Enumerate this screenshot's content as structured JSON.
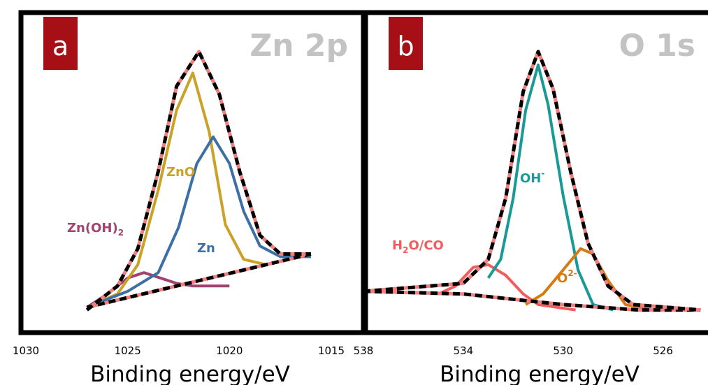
{
  "chart_data": [
    {
      "type": "line",
      "panel_label": "a",
      "title": "Zn 2p",
      "xlabel": "Binding energy/eV",
      "xlim": [
        1030,
        1015
      ],
      "x_reversed": true,
      "xticks": [
        1030,
        1025,
        1020,
        1015
      ],
      "colors": {
        "badge": "#a50f15",
        "title": "#c3c3c3"
      },
      "series": [
        {
          "label_text": "Zn(OH)",
          "label_sub": "2",
          "color": "#a2426f",
          "points": [
            [
              1027.0,
              0.04
            ],
            [
              1026.0,
              0.09
            ],
            [
              1025.0,
              0.15
            ],
            [
              1024.2,
              0.17
            ],
            [
              1023.4,
              0.15
            ],
            [
              1022.6,
              0.13
            ],
            [
              1021.8,
              0.12
            ],
            [
              1020.0,
              0.12
            ]
          ]
        },
        {
          "label_text": "ZnO",
          "label_sub": "",
          "color": "#c9a227",
          "points": [
            [
              1027.0,
              0.04
            ],
            [
              1025.5,
              0.09
            ],
            [
              1024.5,
              0.2
            ],
            [
              1023.5,
              0.48
            ],
            [
              1022.6,
              0.78
            ],
            [
              1021.8,
              0.92
            ],
            [
              1021.0,
              0.7
            ],
            [
              1020.2,
              0.35
            ],
            [
              1019.3,
              0.22
            ],
            [
              1018.2,
              0.2
            ]
          ]
        },
        {
          "label_text": "Zn",
          "label_sub": "",
          "color": "#3d6fa5",
          "points": [
            [
              1027.0,
              0.04
            ],
            [
              1025.0,
              0.1
            ],
            [
              1023.5,
              0.17
            ],
            [
              1022.5,
              0.34
            ],
            [
              1021.6,
              0.58
            ],
            [
              1020.8,
              0.68
            ],
            [
              1020.0,
              0.58
            ],
            [
              1019.3,
              0.4
            ],
            [
              1018.5,
              0.27
            ],
            [
              1017.5,
              0.23
            ],
            [
              1016.0,
              0.23
            ]
          ]
        },
        {
          "label_text": "Background",
          "label_sub": "",
          "color": "#000000",
          "dashed": true,
          "hidden_label": true,
          "points": [
            [
              1027.0,
              0.04
            ],
            [
              1016.0,
              0.24
            ]
          ]
        },
        {
          "label_text": "Envelope",
          "label_sub": "",
          "color": "#000000",
          "dashed": true,
          "hidden_label": true,
          "points": [
            [
              1027.0,
              0.03
            ],
            [
              1025.5,
              0.12
            ],
            [
              1024.5,
              0.26
            ],
            [
              1023.5,
              0.55
            ],
            [
              1022.6,
              0.87
            ],
            [
              1021.5,
              1.0
            ],
            [
              1020.5,
              0.84
            ],
            [
              1019.5,
              0.55
            ],
            [
              1018.5,
              0.31
            ],
            [
              1017.5,
              0.24
            ],
            [
              1016.0,
              0.24
            ]
          ]
        }
      ]
    },
    {
      "type": "line",
      "panel_label": "b",
      "title": "O 1s",
      "xlabel": "Binding energy/eV",
      "xlim": [
        538,
        524
      ],
      "x_reversed": true,
      "xticks": [
        538,
        534,
        530,
        526
      ],
      "colors": {
        "badge": "#a50f15",
        "title": "#c3c3c3"
      },
      "series": [
        {
          "label_text": "H",
          "label_sub": "2",
          "label_text2": "O/CO",
          "color": "#f25c5c",
          "points": [
            [
              535.0,
              0.09
            ],
            [
              534.3,
              0.12
            ],
            [
              533.6,
              0.19
            ],
            [
              533.0,
              0.2
            ],
            [
              532.3,
              0.16
            ],
            [
              531.6,
              0.09
            ],
            [
              531.0,
              0.05
            ],
            [
              529.5,
              0.03
            ]
          ]
        },
        {
          "label_text": "OH",
          "label_sup": "-",
          "color": "#1a9a96",
          "points": [
            [
              533.0,
              0.15
            ],
            [
              532.5,
              0.22
            ],
            [
              532.0,
              0.45
            ],
            [
              531.5,
              0.78
            ],
            [
              531.0,
              0.95
            ],
            [
              530.6,
              0.8
            ],
            [
              530.0,
              0.46
            ],
            [
              529.4,
              0.18
            ],
            [
              528.8,
              0.05
            ],
            [
              528.0,
              0.03
            ]
          ]
        },
        {
          "label_text": "O",
          "label_sup": "2-",
          "color": "#d67a12",
          "points": [
            [
              531.5,
              0.05
            ],
            [
              530.8,
              0.09
            ],
            [
              530.0,
              0.18
            ],
            [
              529.3,
              0.26
            ],
            [
              528.8,
              0.24
            ],
            [
              528.2,
              0.14
            ],
            [
              527.5,
              0.05
            ],
            [
              526.5,
              0.03
            ],
            [
              524.5,
              0.03
            ]
          ]
        },
        {
          "label_text": "Background",
          "color": "#000000",
          "dashed": true,
          "hidden_label": true,
          "points": [
            [
              538.0,
              0.1
            ],
            [
              534.0,
              0.09
            ],
            [
              532.0,
              0.07
            ],
            [
              530.0,
              0.05
            ],
            [
              527.0,
              0.03
            ],
            [
              524.5,
              0.03
            ]
          ]
        },
        {
          "label_text": "Envelope",
          "color": "#000000",
          "dashed": true,
          "hidden_label": true,
          "points": [
            [
              538.0,
              0.1
            ],
            [
              534.0,
              0.13
            ],
            [
              533.0,
              0.22
            ],
            [
              532.3,
              0.45
            ],
            [
              531.6,
              0.85
            ],
            [
              531.0,
              1.0
            ],
            [
              530.4,
              0.86
            ],
            [
              529.7,
              0.55
            ],
            [
              529.0,
              0.28
            ],
            [
              528.2,
              0.12
            ],
            [
              527.2,
              0.05
            ],
            [
              524.5,
              0.03
            ]
          ]
        }
      ]
    }
  ]
}
